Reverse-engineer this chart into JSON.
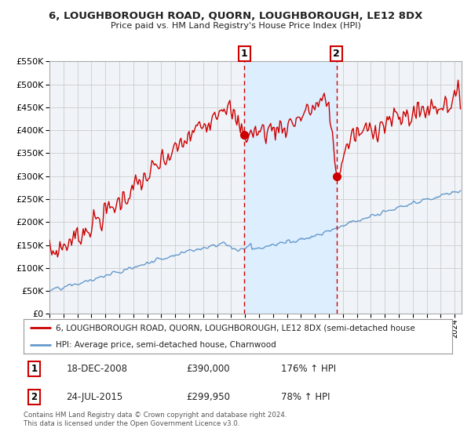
{
  "title": "6, LOUGHBOROUGH ROAD, QUORN, LOUGHBOROUGH, LE12 8DX",
  "subtitle": "Price paid vs. HM Land Registry's House Price Index (HPI)",
  "legend_line1": "6, LOUGHBOROUGH ROAD, QUORN, LOUGHBOROUGH, LE12 8DX (semi-detached house",
  "legend_line2": "HPI: Average price, semi-detached house, Charnwood",
  "annotation1_label": "1",
  "annotation1_date": "18-DEC-2008",
  "annotation1_price": "£390,000",
  "annotation1_hpi": "176% ↑ HPI",
  "annotation2_label": "2",
  "annotation2_date": "24-JUL-2015",
  "annotation2_price": "£299,950",
  "annotation2_hpi": "78% ↑ HPI",
  "footer": "Contains HM Land Registry data © Crown copyright and database right 2024.\nThis data is licensed under the Open Government Licence v3.0.",
  "red_line_color": "#cc0000",
  "blue_line_color": "#6699cc",
  "background_color": "#ffffff",
  "plot_bg_color": "#f0f4f8",
  "shaded_region_color": "#ddeeff",
  "grid_color": "#cccccc",
  "ylim": [
    0,
    550000
  ],
  "ytick_step": 50000,
  "x_start_year": 1995,
  "x_end_year": 2024
}
